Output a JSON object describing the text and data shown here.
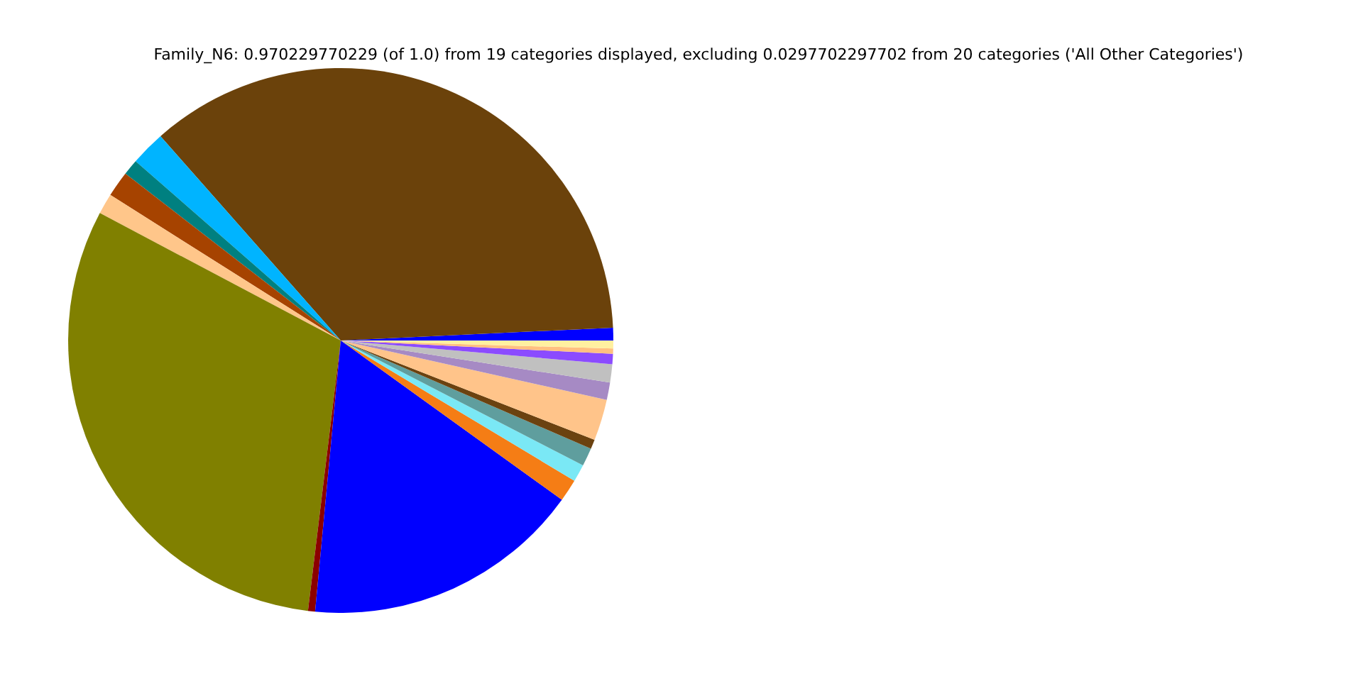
{
  "chart_data": {
    "type": "pie",
    "title": "Family_N6: 0.970229770229 (of 1.0) from 19 categories displayed, excluding 0.0297702297702 from 20 categories ('All Other Categories')",
    "categories": [
      null,
      null,
      null,
      null,
      null,
      null,
      null,
      null,
      null,
      null,
      null,
      null,
      null,
      null,
      null,
      null,
      null,
      null,
      null
    ],
    "values": [
      0.75,
      35.75,
      2.06,
      0.94,
      1.53,
      1.22,
      30.83,
      0.42,
      16.56,
      1.33,
      1.03,
      1.08,
      0.56,
      2.44,
      1.03,
      1.08,
      0.61,
      0.31,
      0.47
    ],
    "colors": [
      "#0000ff",
      "#6b420b",
      "#00b4ff",
      "#008080",
      "#a64300",
      "#ffc68a",
      "#808000",
      "#8b0000",
      "#0000ff",
      "#f57d15",
      "#7ae8f5",
      "#5f9e9e",
      "#6b4210",
      "#ffc48a",
      "#a68ac4",
      "#c0c0c0",
      "#8b4bff",
      "#ffc080",
      "#fff0a0"
    ]
  }
}
